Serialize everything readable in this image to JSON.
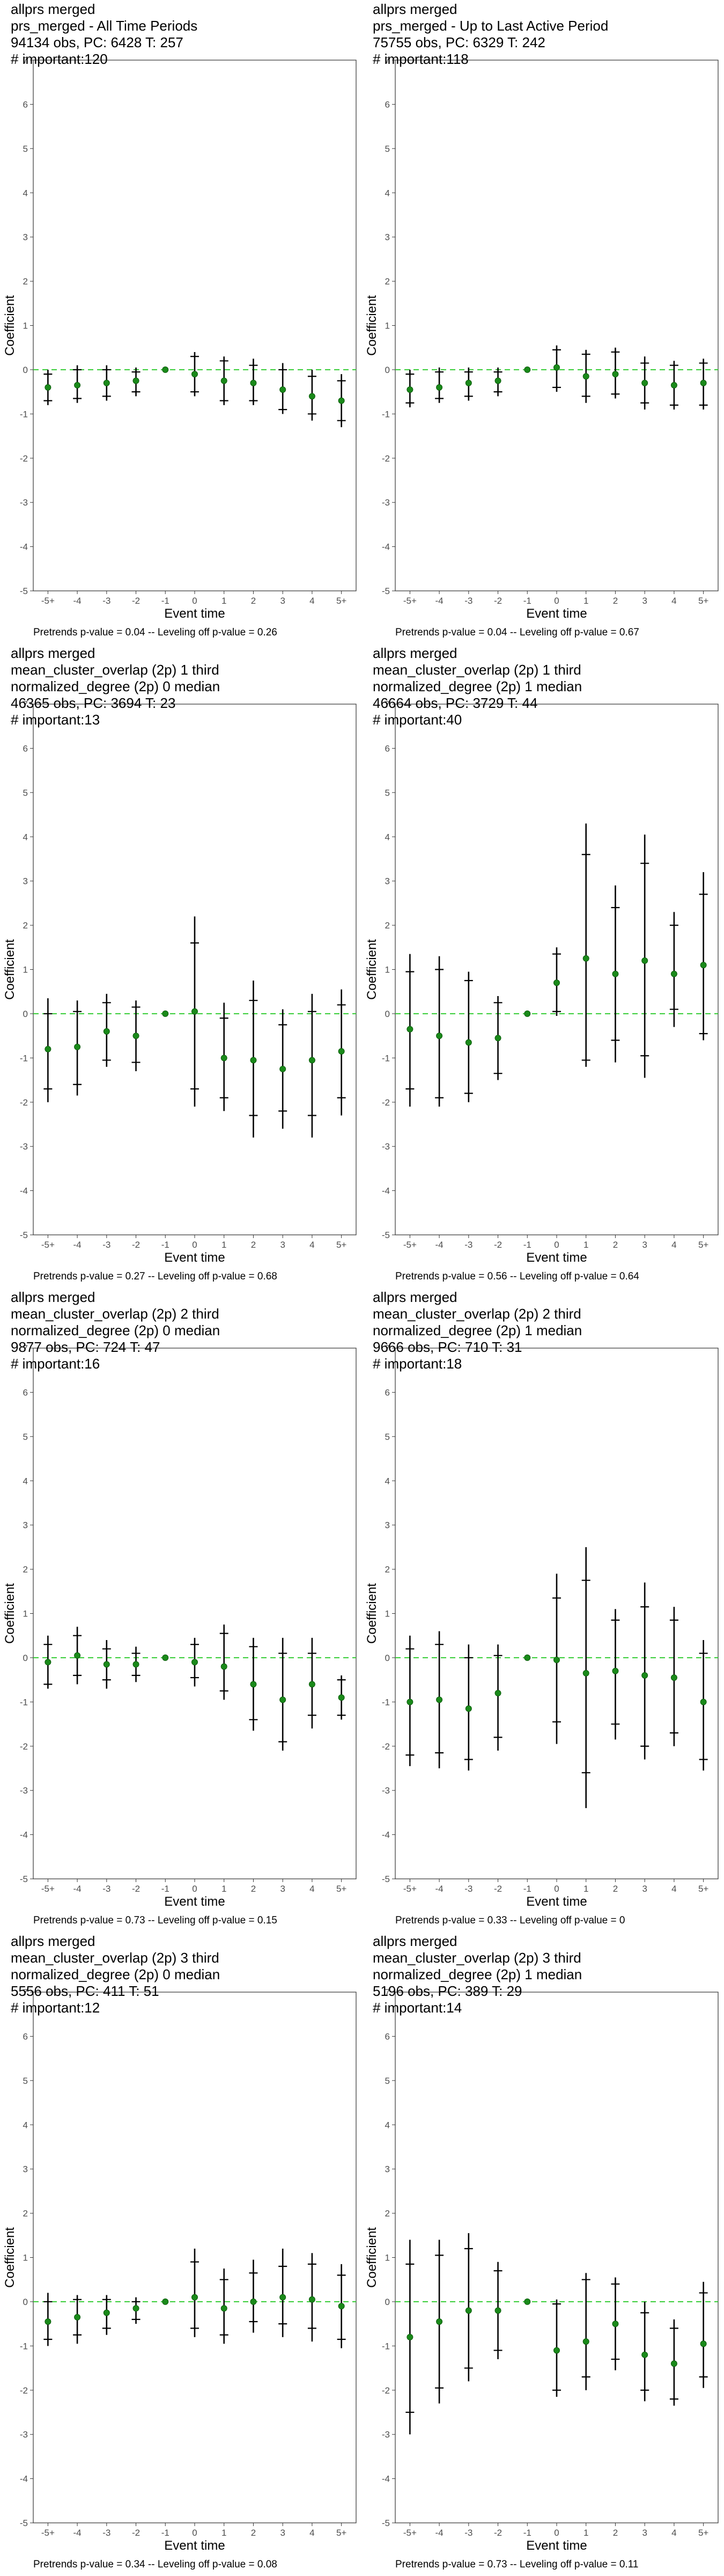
{
  "colors": {
    "point": "#1a8a1a",
    "refline": "#33cc33",
    "errorbar": "#000000",
    "frame": "#333333"
  },
  "chart_data": [
    {
      "type": "scatter",
      "title_lines": [
        "allprs merged",
        "prs_merged - All Time Periods",
        "94134 obs, PC: 6428 T: 257",
        "# important:120"
      ],
      "xlabel": "Event time",
      "ylabel": "Coefficient",
      "categories": [
        "-5+",
        "-4",
        "-3",
        "-2",
        "-1",
        "0",
        "1",
        "2",
        "3",
        "4",
        "5+"
      ],
      "ylim": [
        -5,
        7
      ],
      "refline": 0,
      "values": [
        -0.4,
        -0.35,
        -0.3,
        -0.25,
        0,
        -0.1,
        -0.25,
        -0.3,
        -0.45,
        -0.6,
        -0.7
      ],
      "ci95": [
        [
          -0.8,
          0.0
        ],
        [
          -0.75,
          0.1
        ],
        [
          -0.7,
          0.1
        ],
        [
          -0.6,
          0.05
        ],
        [
          0,
          0
        ],
        [
          -0.6,
          0.4
        ],
        [
          -0.8,
          0.3
        ],
        [
          -0.8,
          0.25
        ],
        [
          -1.0,
          0.15
        ],
        [
          -1.15,
          0.0
        ],
        [
          -1.3,
          -0.1
        ]
      ],
      "ci90": [
        [
          -0.7,
          -0.1
        ],
        [
          -0.65,
          0.0
        ],
        [
          -0.6,
          0.0
        ],
        [
          -0.5,
          -0.05
        ],
        [
          0,
          0
        ],
        [
          -0.5,
          0.3
        ],
        [
          -0.7,
          0.2
        ],
        [
          -0.7,
          0.1
        ],
        [
          -0.9,
          0.0
        ],
        [
          -1.0,
          -0.15
        ],
        [
          -1.15,
          -0.25
        ]
      ],
      "caption": "Pretrends p-value = 0.04 -- Leveling off p-value = 0.26"
    },
    {
      "type": "scatter",
      "title_lines": [
        "allprs merged",
        "prs_merged - Up to Last Active Period",
        "75755 obs, PC: 6329 T: 242",
        "# important:118"
      ],
      "xlabel": "Event time",
      "ylabel": "Coefficient",
      "categories": [
        "-5+",
        "-4",
        "-3",
        "-2",
        "-1",
        "0",
        "1",
        "2",
        "3",
        "4",
        "5+"
      ],
      "ylim": [
        -5,
        7
      ],
      "refline": 0,
      "values": [
        -0.45,
        -0.4,
        -0.3,
        -0.25,
        0,
        0.05,
        -0.15,
        -0.1,
        -0.3,
        -0.35,
        -0.3
      ],
      "ci95": [
        [
          -0.85,
          0.0
        ],
        [
          -0.75,
          0.05
        ],
        [
          -0.7,
          0.05
        ],
        [
          -0.6,
          0.05
        ],
        [
          0,
          0
        ],
        [
          -0.5,
          0.55
        ],
        [
          -0.75,
          0.45
        ],
        [
          -0.65,
          0.5
        ],
        [
          -0.9,
          0.3
        ],
        [
          -0.9,
          0.2
        ],
        [
          -0.9,
          0.25
        ]
      ],
      "ci90": [
        [
          -0.75,
          -0.1
        ],
        [
          -0.65,
          -0.05
        ],
        [
          -0.6,
          -0.05
        ],
        [
          -0.5,
          -0.05
        ],
        [
          0,
          0
        ],
        [
          -0.4,
          0.45
        ],
        [
          -0.6,
          0.35
        ],
        [
          -0.55,
          0.4
        ],
        [
          -0.75,
          0.15
        ],
        [
          -0.8,
          0.1
        ],
        [
          -0.8,
          0.15
        ]
      ],
      "caption": "Pretrends p-value = 0.04 -- Leveling off p-value = 0.67"
    },
    {
      "type": "scatter",
      "title_lines": [
        "allprs merged",
        "mean_cluster_overlap (2p) 1 third",
        "normalized_degree (2p) 0 median",
        "46365 obs, PC: 3694 T: 23",
        "# important:13"
      ],
      "xlabel": "Event time",
      "ylabel": "Coefficient",
      "categories": [
        "-5+",
        "-4",
        "-3",
        "-2",
        "-1",
        "0",
        "1",
        "2",
        "3",
        "4",
        "5+"
      ],
      "ylim": [
        -5,
        7
      ],
      "refline": 0,
      "values": [
        -0.8,
        -0.75,
        -0.4,
        -0.5,
        0,
        0.05,
        -1.0,
        -1.05,
        -1.25,
        -1.05,
        -0.85
      ],
      "ci95": [
        [
          -2.0,
          0.35
        ],
        [
          -1.85,
          0.3
        ],
        [
          -1.2,
          0.45
        ],
        [
          -1.3,
          0.3
        ],
        [
          0,
          0
        ],
        [
          -2.1,
          2.2
        ],
        [
          -2.2,
          0.25
        ],
        [
          -2.8,
          0.75
        ],
        [
          -2.6,
          0.1
        ],
        [
          -2.8,
          0.45
        ],
        [
          -2.3,
          0.55
        ]
      ],
      "ci90": [
        [
          -1.7,
          0.0
        ],
        [
          -1.6,
          0.05
        ],
        [
          -1.05,
          0.25
        ],
        [
          -1.1,
          0.15
        ],
        [
          0,
          0
        ],
        [
          -1.7,
          1.6
        ],
        [
          -1.9,
          -0.1
        ],
        [
          -2.3,
          0.3
        ],
        [
          -2.2,
          -0.25
        ],
        [
          -2.3,
          0.05
        ],
        [
          -1.9,
          0.2
        ]
      ],
      "caption": "Pretrends p-value = 0.27 -- Leveling off p-value = 0.68"
    },
    {
      "type": "scatter",
      "title_lines": [
        "allprs merged",
        "mean_cluster_overlap (2p) 1 third",
        "normalized_degree (2p) 1 median",
        "46664 obs, PC: 3729 T: 44",
        "# important:40"
      ],
      "xlabel": "Event time",
      "ylabel": "Coefficient",
      "categories": [
        "-5+",
        "-4",
        "-3",
        "-2",
        "-1",
        "0",
        "1",
        "2",
        "3",
        "4",
        "5+"
      ],
      "ylim": [
        -5,
        7
      ],
      "refline": 0,
      "values": [
        -0.35,
        -0.5,
        -0.65,
        -0.55,
        0,
        0.7,
        1.25,
        0.9,
        1.2,
        0.9,
        1.1
      ],
      "ci95": [
        [
          -2.1,
          1.35
        ],
        [
          -2.1,
          1.3
        ],
        [
          -2.0,
          0.95
        ],
        [
          -1.5,
          0.4
        ],
        [
          0,
          0
        ],
        [
          -0.05,
          1.5
        ],
        [
          -1.2,
          4.3
        ],
        [
          -1.1,
          2.9
        ],
        [
          -1.45,
          4.05
        ],
        [
          -0.3,
          2.3
        ],
        [
          -0.6,
          3.2
        ]
      ],
      "ci90": [
        [
          -1.7,
          0.95
        ],
        [
          -1.9,
          1.0
        ],
        [
          -1.8,
          0.75
        ],
        [
          -1.35,
          0.25
        ],
        [
          0,
          0
        ],
        [
          0.05,
          1.35
        ],
        [
          -1.05,
          3.6
        ],
        [
          -0.6,
          2.4
        ],
        [
          -0.95,
          3.4
        ],
        [
          0.1,
          2.0
        ],
        [
          -0.45,
          2.7
        ]
      ],
      "caption": "Pretrends p-value = 0.56 -- Leveling off p-value = 0.64"
    },
    {
      "type": "scatter",
      "title_lines": [
        "allprs merged",
        "mean_cluster_overlap (2p) 2 third",
        "normalized_degree (2p) 0 median",
        "9877 obs, PC: 724 T: 47",
        "# important:16"
      ],
      "xlabel": "Event time",
      "ylabel": "Coefficient",
      "categories": [
        "-5+",
        "-4",
        "-3",
        "-2",
        "-1",
        "0",
        "1",
        "2",
        "3",
        "4",
        "5+"
      ],
      "ylim": [
        -5,
        7
      ],
      "refline": 0,
      "values": [
        -0.1,
        0.05,
        -0.15,
        -0.15,
        0,
        -0.1,
        -0.2,
        -0.6,
        -0.95,
        -0.6,
        -0.9
      ],
      "ci95": [
        [
          -0.7,
          0.5
        ],
        [
          -0.6,
          0.7
        ],
        [
          -0.7,
          0.4
        ],
        [
          -0.55,
          0.25
        ],
        [
          0,
          0
        ],
        [
          -0.65,
          0.45
        ],
        [
          -0.95,
          0.75
        ],
        [
          -1.65,
          0.45
        ],
        [
          -2.1,
          0.45
        ],
        [
          -1.6,
          0.45
        ],
        [
          -1.4,
          -0.4
        ]
      ],
      "ci90": [
        [
          -0.6,
          0.3
        ],
        [
          -0.4,
          0.5
        ],
        [
          -0.5,
          0.2
        ],
        [
          -0.4,
          0.1
        ],
        [
          0,
          0
        ],
        [
          -0.45,
          0.3
        ],
        [
          -0.75,
          0.55
        ],
        [
          -1.4,
          0.25
        ],
        [
          -1.9,
          0.1
        ],
        [
          -1.3,
          0.1
        ],
        [
          -1.3,
          -0.5
        ]
      ],
      "caption": "Pretrends p-value = 0.73 -- Leveling off p-value = 0.15"
    },
    {
      "type": "scatter",
      "title_lines": [
        "allprs merged",
        "mean_cluster_overlap (2p) 2 third",
        "normalized_degree (2p) 1 median",
        "9666 obs, PC: 710 T: 31",
        "# important:18"
      ],
      "xlabel": "Event time",
      "ylabel": "Coefficient",
      "categories": [
        "-5+",
        "-4",
        "-3",
        "-2",
        "-1",
        "0",
        "1",
        "2",
        "3",
        "4",
        "5+"
      ],
      "ylim": [
        -5,
        7
      ],
      "refline": 0,
      "values": [
        -1.0,
        -0.95,
        -1.15,
        -0.8,
        0,
        -0.05,
        -0.35,
        -0.3,
        -0.4,
        -0.45,
        -1.0
      ],
      "ci95": [
        [
          -2.45,
          0.5
        ],
        [
          -2.5,
          0.6
        ],
        [
          -2.55,
          0.3
        ],
        [
          -2.1,
          0.3
        ],
        [
          0,
          0
        ],
        [
          -1.95,
          1.9
        ],
        [
          -3.4,
          2.5
        ],
        [
          -1.85,
          1.1
        ],
        [
          -2.3,
          1.7
        ],
        [
          -2.0,
          1.15
        ],
        [
          -2.55,
          0.4
        ]
      ],
      "ci90": [
        [
          -2.2,
          0.2
        ],
        [
          -2.15,
          0.3
        ],
        [
          -2.3,
          0.0
        ],
        [
          -1.8,
          0.05
        ],
        [
          0,
          0
        ],
        [
          -1.45,
          1.35
        ],
        [
          -2.6,
          1.75
        ],
        [
          -1.5,
          0.85
        ],
        [
          -2.0,
          1.15
        ],
        [
          -1.7,
          0.85
        ],
        [
          -2.3,
          0.1
        ]
      ],
      "caption": "Pretrends p-value = 0.33 -- Leveling off p-value = 0"
    },
    {
      "type": "scatter",
      "title_lines": [
        "allprs merged",
        "mean_cluster_overlap (2p) 3 third",
        "normalized_degree (2p) 0 median",
        "5556 obs, PC: 411 T: 51",
        "# important:12"
      ],
      "xlabel": "Event time",
      "ylabel": "Coefficient",
      "categories": [
        "-5+",
        "-4",
        "-3",
        "-2",
        "-1",
        "0",
        "1",
        "2",
        "3",
        "4",
        "5+"
      ],
      "ylim": [
        -5,
        7
      ],
      "refline": 0,
      "values": [
        -0.45,
        -0.35,
        -0.25,
        -0.15,
        0,
        0.1,
        -0.15,
        0.0,
        0.1,
        0.05,
        -0.1
      ],
      "ci95": [
        [
          -1.0,
          0.2
        ],
        [
          -0.95,
          0.15
        ],
        [
          -0.75,
          0.15
        ],
        [
          -0.5,
          0.1
        ],
        [
          0,
          0
        ],
        [
          -0.8,
          1.2
        ],
        [
          -0.95,
          0.75
        ],
        [
          -0.7,
          0.95
        ],
        [
          -0.8,
          1.2
        ],
        [
          -0.9,
          1.1
        ],
        [
          -1.05,
          0.85
        ]
      ],
      "ci90": [
        [
          -0.85,
          0.0
        ],
        [
          -0.75,
          0.05
        ],
        [
          -0.6,
          0.05
        ],
        [
          -0.4,
          0.0
        ],
        [
          0,
          0
        ],
        [
          -0.6,
          0.9
        ],
        [
          -0.75,
          0.5
        ],
        [
          -0.45,
          0.65
        ],
        [
          -0.5,
          0.8
        ],
        [
          -0.6,
          0.85
        ],
        [
          -0.85,
          0.6
        ]
      ],
      "caption": "Pretrends p-value = 0.34 -- Leveling off p-value = 0.08"
    },
    {
      "type": "scatter",
      "title_lines": [
        "allprs merged",
        "mean_cluster_overlap (2p) 3 third",
        "normalized_degree (2p) 1 median",
        "5196 obs, PC: 389 T: 29",
        "# important:14"
      ],
      "xlabel": "Event time",
      "ylabel": "Coefficient",
      "categories": [
        "-5+",
        "-4",
        "-3",
        "-2",
        "-1",
        "0",
        "1",
        "2",
        "3",
        "4",
        "5+"
      ],
      "ylim": [
        -5,
        7
      ],
      "refline": 0,
      "values": [
        -0.8,
        -0.45,
        -0.2,
        -0.2,
        0,
        -1.1,
        -0.9,
        -0.5,
        -1.2,
        -1.4,
        -0.95
      ],
      "ci95": [
        [
          -3.0,
          1.4
        ],
        [
          -2.3,
          1.4
        ],
        [
          -1.8,
          1.55
        ],
        [
          -1.3,
          0.9
        ],
        [
          0,
          0
        ],
        [
          -2.15,
          0.05
        ],
        [
          -2.0,
          0.65
        ],
        [
          -1.55,
          0.55
        ],
        [
          -2.25,
          0.0
        ],
        [
          -2.35,
          -0.4
        ],
        [
          -1.95,
          0.45
        ]
      ],
      "ci90": [
        [
          -2.5,
          0.85
        ],
        [
          -1.95,
          1.05
        ],
        [
          -1.5,
          1.2
        ],
        [
          -1.1,
          0.7
        ],
        [
          0,
          0
        ],
        [
          -2.0,
          -0.05
        ],
        [
          -1.7,
          0.5
        ],
        [
          -1.3,
          0.4
        ],
        [
          -2.0,
          -0.25
        ],
        [
          -2.2,
          -0.6
        ],
        [
          -1.7,
          0.2
        ]
      ],
      "caption": "Pretrends p-value = 0.73 -- Leveling off p-value = 0.11"
    }
  ]
}
